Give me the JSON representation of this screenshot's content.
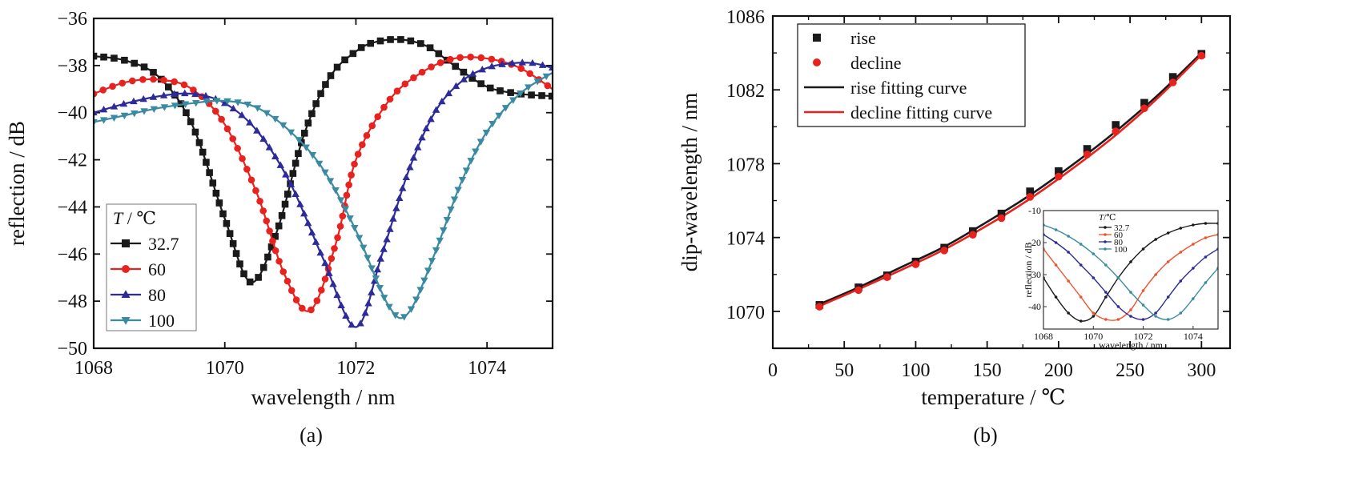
{
  "chart_data": [
    {
      "type": "line",
      "panel_label": "(a)",
      "xlabel": "wavelength / nm",
      "ylabel": "reflection / dB",
      "xlim": [
        1068,
        1075
      ],
      "ylim": [
        -50,
        -36
      ],
      "xticks": [
        1068,
        1070,
        1072,
        1074
      ],
      "yticks": [
        -50,
        -48,
        -46,
        -44,
        -42,
        -40,
        -38,
        -36
      ],
      "ytick_labels": [
        "−50",
        "−48",
        "−46",
        "−44",
        "−42",
        "−40",
        "−38",
        "−36"
      ],
      "grid": false,
      "legend": {
        "title_italic": "T",
        "title_rest": " / ℃",
        "position": "lower-left"
      },
      "series": [
        {
          "name": "32.7",
          "color": "#1a1a1a",
          "marker": "square",
          "x": [
            1068,
            1068.5,
            1069,
            1069.5,
            1070,
            1070.4,
            1070.8,
            1071.2,
            1071.6,
            1072,
            1072.3,
            1072.7,
            1073.1,
            1073.5,
            1074,
            1074.5,
            1075
          ],
          "y": [
            -37.6,
            -37.8,
            -38.5,
            -40.5,
            -44.5,
            -47.2,
            -45.0,
            -41.0,
            -38.5,
            -37.4,
            -37.0,
            -36.9,
            -37.2,
            -38.0,
            -38.9,
            -39.2,
            -39.3
          ]
        },
        {
          "name": "60",
          "color": "#e8231f",
          "marker": "circle",
          "x": [
            1068,
            1068.5,
            1069,
            1069.5,
            1070,
            1070.5,
            1070.9,
            1071.3,
            1071.7,
            1072,
            1072.5,
            1073,
            1073.5,
            1074,
            1074.5,
            1075
          ],
          "y": [
            -39.2,
            -38.7,
            -38.6,
            -39.0,
            -40.5,
            -43.5,
            -46.8,
            -48.4,
            -45.5,
            -42.0,
            -39.5,
            -38.3,
            -37.7,
            -37.7,
            -38.1,
            -39.0
          ]
        },
        {
          "name": "80",
          "color": "#2d2b9a",
          "marker": "triangle-up",
          "x": [
            1068,
            1068.5,
            1069,
            1069.5,
            1070,
            1070.5,
            1071,
            1071.5,
            1072,
            1072.4,
            1072.8,
            1073.2,
            1073.6,
            1074,
            1074.4,
            1074.7,
            1075
          ],
          "y": [
            -40.0,
            -39.6,
            -39.3,
            -39.2,
            -39.6,
            -40.8,
            -43.0,
            -46.2,
            -49.1,
            -46.0,
            -42.5,
            -40.0,
            -38.7,
            -38.1,
            -37.9,
            -37.9,
            -38.1
          ]
        },
        {
          "name": "100",
          "color": "#3a8ba1",
          "marker": "triangle-down",
          "x": [
            1068,
            1068.5,
            1069,
            1069.5,
            1070,
            1070.5,
            1071,
            1071.5,
            1072,
            1072.5,
            1072.8,
            1073.2,
            1073.6,
            1074,
            1074.5,
            1075
          ],
          "y": [
            -40.4,
            -40.1,
            -39.8,
            -39.6,
            -39.5,
            -39.8,
            -40.8,
            -42.4,
            -45.0,
            -48.2,
            -48.5,
            -46.0,
            -43.0,
            -40.8,
            -39.2,
            -38.3
          ]
        }
      ]
    },
    {
      "type": "scatter",
      "panel_label": "(b)",
      "xlabel": "temperature / ℃",
      "ylabel": "dip-wavelength / nm",
      "xlim": [
        0,
        320
      ],
      "ylim": [
        1068,
        1086
      ],
      "xticks": [
        0,
        50,
        100,
        150,
        200,
        250,
        300
      ],
      "yticks": [
        1070,
        1074,
        1078,
        1082,
        1086
      ],
      "grid": false,
      "legend": {
        "position": "top-left"
      },
      "series": [
        {
          "name": "rise",
          "color": "#1a1a1a",
          "marker": "square",
          "x": [
            32.7,
            60,
            80,
            100,
            120,
            140,
            160,
            180,
            200,
            220,
            240,
            260,
            280,
            300
          ],
          "y": [
            1070.35,
            1071.3,
            1071.95,
            1072.7,
            1073.45,
            1074.35,
            1075.3,
            1076.5,
            1077.6,
            1078.8,
            1080.1,
            1081.3,
            1082.7,
            1083.95
          ]
        },
        {
          "name": "decline",
          "color": "#e8231f",
          "marker": "circle",
          "x": [
            32.7,
            60,
            80,
            100,
            120,
            140,
            160,
            180,
            200,
            220,
            240,
            260,
            280,
            300
          ],
          "y": [
            1070.25,
            1071.15,
            1071.85,
            1072.55,
            1073.3,
            1074.15,
            1075.05,
            1076.2,
            1077.3,
            1078.5,
            1079.75,
            1081.0,
            1082.4,
            1083.85
          ]
        },
        {
          "name": "rise fitting curve",
          "color": "#1a1a1a",
          "line": true,
          "x": [
            30,
            60,
            90,
            120,
            150,
            180,
            210,
            240,
            270,
            300
          ],
          "y": [
            1070.3,
            1071.3,
            1072.4,
            1073.5,
            1074.85,
            1076.3,
            1077.95,
            1079.75,
            1081.75,
            1084.0
          ]
        },
        {
          "name": "decline fitting curve",
          "color": "#e8231f",
          "line": true,
          "x": [
            30,
            60,
            90,
            120,
            150,
            180,
            210,
            240,
            270,
            300
          ],
          "y": [
            1070.2,
            1071.2,
            1072.25,
            1073.35,
            1074.65,
            1076.1,
            1077.75,
            1079.55,
            1081.6,
            1083.9
          ]
        }
      ],
      "inset": {
        "type": "line",
        "xlabel": "wavelength / nm",
        "ylabel": "reflection / dB",
        "xlim": [
          1068,
          1075
        ],
        "ylim": [
          -47,
          -10
        ],
        "xticks": [
          1068,
          1070,
          1072,
          1074
        ],
        "yticks": [
          -40,
          -30,
          -20,
          -10
        ],
        "legend": {
          "title_italic": "T",
          "title_rest": "/℃",
          "position": "top-center"
        },
        "series": [
          {
            "name": "32.7",
            "color": "#1a1a1a",
            "marker": "circle",
            "x": [
              1068,
              1068.5,
              1069,
              1069.5,
              1070,
              1070.5,
              1071,
              1071.5,
              1072,
              1072.5,
              1073,
              1073.5,
              1074,
              1074.5,
              1075
            ],
            "y": [
              -31,
              -37,
              -42,
              -44.5,
              -43,
              -37,
              -31,
              -26,
              -22,
              -19,
              -17,
              -15.5,
              -14.5,
              -14,
              -14
            ]
          },
          {
            "name": "60",
            "color": "#f0522e",
            "marker": "circle",
            "x": [
              1068,
              1068.5,
              1069,
              1069.5,
              1070,
              1070.5,
              1071,
              1071.5,
              1072,
              1072.5,
              1073,
              1073.5,
              1074,
              1074.5,
              1075
            ],
            "y": [
              -22,
              -27,
              -32,
              -37,
              -42,
              -44,
              -44,
              -41,
              -35,
              -30,
              -26,
              -23,
              -20.5,
              -18.5,
              -17.5
            ]
          },
          {
            "name": "80",
            "color": "#2d2b9a",
            "marker": "circle",
            "x": [
              1068,
              1068.5,
              1069,
              1069.5,
              1070,
              1070.5,
              1071,
              1071.5,
              1072,
              1072.5,
              1073,
              1073.5,
              1074,
              1074.5,
              1075
            ],
            "y": [
              -17.5,
              -20,
              -23,
              -27,
              -31,
              -35.5,
              -40,
              -43,
              -44,
              -42,
              -37,
              -32,
              -28,
              -24.5,
              -22
            ]
          },
          {
            "name": "100",
            "color": "#3a8ba1",
            "marker": "circle",
            "x": [
              1068,
              1068.5,
              1069,
              1069.5,
              1070,
              1070.5,
              1071,
              1071.5,
              1072,
              1072.5,
              1073,
              1073.5,
              1074,
              1074.5,
              1075
            ],
            "y": [
              -14.5,
              -16,
              -18,
              -20.5,
              -23.5,
              -27,
              -31,
              -35.5,
              -39.5,
              -43,
              -44,
              -42,
              -37.5,
              -32.5,
              -28
            ]
          }
        ]
      }
    }
  ]
}
